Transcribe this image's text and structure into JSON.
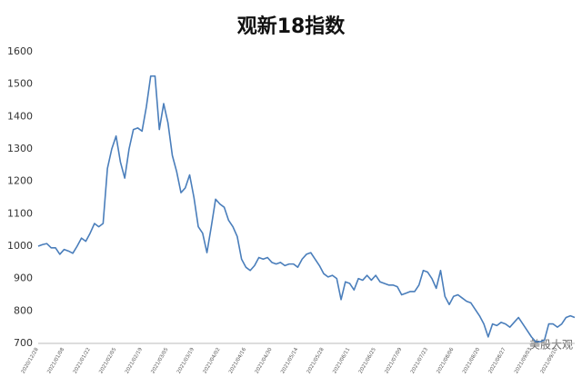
{
  "chart_data": {
    "type": "line",
    "title": "观新18指数",
    "watermark": "美股大观",
    "categories": [
      "2020/12/28",
      null,
      null,
      null,
      null,
      null,
      "2021/01/08",
      null,
      null,
      null,
      null,
      null,
      "2021/01/22",
      null,
      null,
      null,
      null,
      null,
      "2021/02/05",
      null,
      null,
      null,
      null,
      null,
      "2021/02/19",
      null,
      null,
      null,
      null,
      null,
      "2021/03/05",
      null,
      null,
      null,
      null,
      null,
      "2021/03/19",
      null,
      null,
      null,
      null,
      null,
      "2021/04/02",
      null,
      null,
      null,
      null,
      null,
      "2021/04/16",
      null,
      null,
      null,
      null,
      null,
      "2021/04/30",
      null,
      null,
      null,
      null,
      null,
      "2021/05/14",
      null,
      null,
      null,
      null,
      null,
      "2021/05/28",
      null,
      null,
      null,
      null,
      null,
      "2021/06/11",
      null,
      null,
      null,
      null,
      null,
      "2021/06/25",
      null,
      null,
      null,
      null,
      null,
      "2021/07/09",
      null,
      null,
      null,
      null,
      null,
      "2021/07/23",
      null,
      null,
      null,
      null,
      null,
      "2021/08/06",
      null,
      null,
      null,
      null,
      null,
      "2021/08/20",
      null,
      null,
      null,
      null,
      null,
      "2021/08/27",
      null,
      null,
      null,
      null,
      null,
      "2021/09/03",
      null,
      null,
      null,
      null,
      null,
      "2021/09/10",
      null,
      null,
      null,
      null
    ],
    "series": [
      {
        "name": "观新18指数",
        "color": "#4a7ebb",
        "values": [
          1000,
          1005,
          1008,
          995,
          995,
          975,
          990,
          985,
          978,
          1000,
          1025,
          1015,
          1040,
          1070,
          1060,
          1070,
          1240,
          1300,
          1340,
          1260,
          1210,
          1300,
          1360,
          1365,
          1355,
          1430,
          1525,
          1525,
          1360,
          1440,
          1380,
          1280,
          1230,
          1165,
          1180,
          1220,
          1150,
          1060,
          1040,
          980,
          1060,
          1145,
          1130,
          1120,
          1080,
          1060,
          1030,
          960,
          935,
          925,
          940,
          965,
          960,
          965,
          950,
          945,
          950,
          940,
          945,
          945,
          935,
          960,
          975,
          980,
          960,
          940,
          915,
          905,
          910,
          900,
          835,
          890,
          885,
          865,
          900,
          895,
          910,
          895,
          910,
          890,
          885,
          880,
          880,
          875,
          850,
          855,
          860,
          860,
          880,
          925,
          920,
          900,
          870,
          925,
          845,
          820,
          845,
          850,
          840,
          830,
          825,
          805,
          785,
          760,
          720,
          760,
          755,
          765,
          760,
          750,
          765,
          780,
          760,
          740,
          720,
          705,
          705,
          710,
          760,
          760,
          750,
          760,
          780,
          785,
          780
        ]
      }
    ],
    "ylim": [
      700,
      1600
    ],
    "yticks": [
      700,
      800,
      900,
      1000,
      1100,
      1200,
      1300,
      1400,
      1500,
      1600
    ],
    "grid": false
  }
}
